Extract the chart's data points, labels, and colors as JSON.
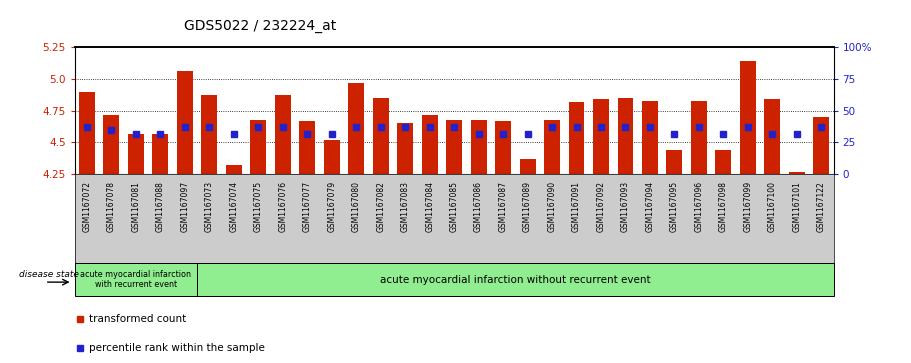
{
  "title": "GDS5022 / 232224_at",
  "samples": [
    "GSM1167072",
    "GSM1167078",
    "GSM1167081",
    "GSM1167088",
    "GSM1167097",
    "GSM1167073",
    "GSM1167074",
    "GSM1167075",
    "GSM1167076",
    "GSM1167077",
    "GSM1167079",
    "GSM1167080",
    "GSM1167082",
    "GSM1167083",
    "GSM1167084",
    "GSM1167085",
    "GSM1167086",
    "GSM1167087",
    "GSM1167089",
    "GSM1167090",
    "GSM1167091",
    "GSM1167092",
    "GSM1167093",
    "GSM1167094",
    "GSM1167095",
    "GSM1167096",
    "GSM1167098",
    "GSM1167099",
    "GSM1167100",
    "GSM1167101",
    "GSM1167122"
  ],
  "bar_values": [
    4.9,
    4.72,
    4.57,
    4.57,
    5.06,
    4.87,
    4.32,
    4.68,
    4.87,
    4.67,
    4.52,
    4.97,
    4.85,
    4.65,
    4.72,
    4.68,
    4.68,
    4.67,
    4.37,
    4.68,
    4.82,
    4.84,
    4.85,
    4.83,
    4.44,
    4.83,
    4.44,
    5.14,
    4.84,
    4.27,
    4.7
  ],
  "blue_values": [
    4.625,
    4.595,
    4.565,
    4.565,
    4.625,
    4.625,
    4.565,
    4.625,
    4.625,
    4.565,
    4.565,
    4.625,
    4.625,
    4.625,
    4.625,
    4.625,
    4.565,
    4.565,
    4.565,
    4.625,
    4.625,
    4.625,
    4.625,
    4.625,
    4.565,
    4.625,
    4.565,
    4.625,
    4.565,
    4.565,
    4.625
  ],
  "ymin": 4.25,
  "ymax": 5.25,
  "yticks_left": [
    4.25,
    4.5,
    4.75,
    5.0,
    5.25
  ],
  "right_yticks_pct": [
    0,
    25,
    50,
    75,
    100
  ],
  "bar_color": "#cc2200",
  "blue_color": "#2222cc",
  "group1_count": 5,
  "group1_label": "acute myocardial infarction\nwith recurrent event",
  "group2_label": "acute myocardial infarction without recurrent event",
  "disease_state_label": "disease state",
  "legend_bar": "transformed count",
  "legend_blue": "percentile rank within the sample",
  "group_color": "#90ee90",
  "xtick_bg_color": "#cccccc",
  "title_fontsize": 10,
  "bar_label_fontsize": 6,
  "ytick_fontsize": 7.5,
  "grid_lines": [
    4.5,
    4.75,
    5.0
  ]
}
